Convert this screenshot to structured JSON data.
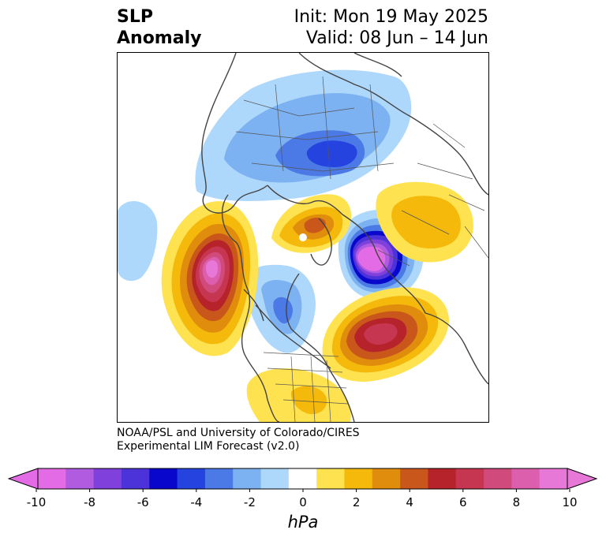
{
  "title": {
    "line1": "SLP",
    "line2": "Anomaly"
  },
  "init": "Init: Mon 19 May 2025",
  "valid": "Valid: 08 Jun – 14 Jun",
  "credit": {
    "line1": "NOAA/PSL and University of Colorado/CIRES",
    "line2": "Experimental LIM Forecast (v2.0)"
  },
  "colorbar": {
    "unit": "hPa",
    "ticks": [
      "-10",
      "-8",
      "-6",
      "-4",
      "-2",
      "0",
      "2",
      "4",
      "6",
      "8",
      "10"
    ],
    "colors": [
      "#e36ce6",
      "#b05be0",
      "#8040dc",
      "#4b33d9",
      "#0a07cc",
      "#2443df",
      "#4b79e6",
      "#7cb1f2",
      "#aed8fb",
      "#ffffff",
      "#ffe250",
      "#f4b90a",
      "#e08c0c",
      "#c9561b",
      "#b7232a",
      "#c73650",
      "#d04a7c",
      "#dc5fae",
      "#e778d8"
    ],
    "end_colors": {
      "low": "#e36ce6",
      "high": "#e778d8"
    }
  },
  "map": {
    "projection": "north polar stereographic",
    "features": [
      {
        "name": "negative-anomaly-central-asia",
        "min_hpa": -6
      },
      {
        "name": "negative-anomaly-europe-scandinavia",
        "min_hpa": -11
      },
      {
        "name": "negative-anomaly-canada",
        "min_hpa": -4
      },
      {
        "name": "negative-anomaly-north-pacific",
        "min_hpa": -2
      },
      {
        "name": "positive-anomaly-gulf-of-alaska",
        "max_hpa": 9
      },
      {
        "name": "positive-anomaly-north-atlantic",
        "max_hpa": 7
      },
      {
        "name": "positive-anomaly-east-siberia",
        "max_hpa": 3
      },
      {
        "name": "positive-anomaly-greenland",
        "max_hpa": 3
      },
      {
        "name": "positive-anomaly-eastern-us",
        "max_hpa": 2
      }
    ]
  }
}
